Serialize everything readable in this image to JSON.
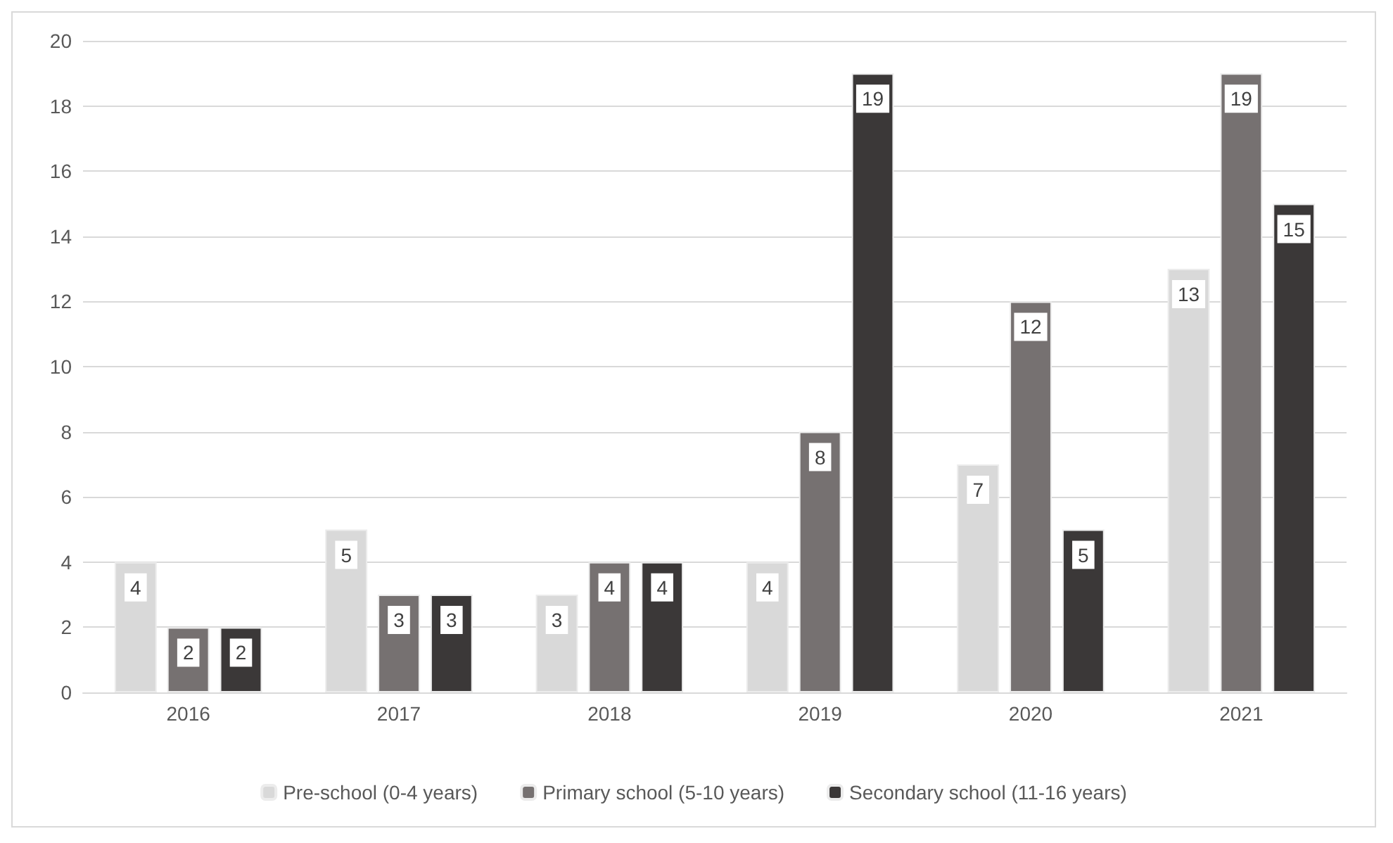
{
  "chart_data": {
    "type": "bar",
    "categories": [
      "2016",
      "2017",
      "2018",
      "2019",
      "2020",
      "2021"
    ],
    "series": [
      {
        "name": "Pre-school (0-4 years)",
        "color": "#d9d9d9",
        "values": [
          4,
          5,
          3,
          4,
          7,
          13
        ]
      },
      {
        "name": "Primary school (5-10 years)",
        "color": "#767171",
        "values": [
          2,
          3,
          4,
          8,
          12,
          19
        ]
      },
      {
        "name": "Secondary school (11-16 years)",
        "color": "#3b3838",
        "values": [
          2,
          3,
          4,
          19,
          5,
          15
        ]
      }
    ],
    "ylim": [
      0,
      20
    ],
    "yticks": [
      0,
      2,
      4,
      6,
      8,
      10,
      12,
      14,
      16,
      18,
      20
    ],
    "grid": "y",
    "legend": "bottom",
    "data_labels": true
  }
}
